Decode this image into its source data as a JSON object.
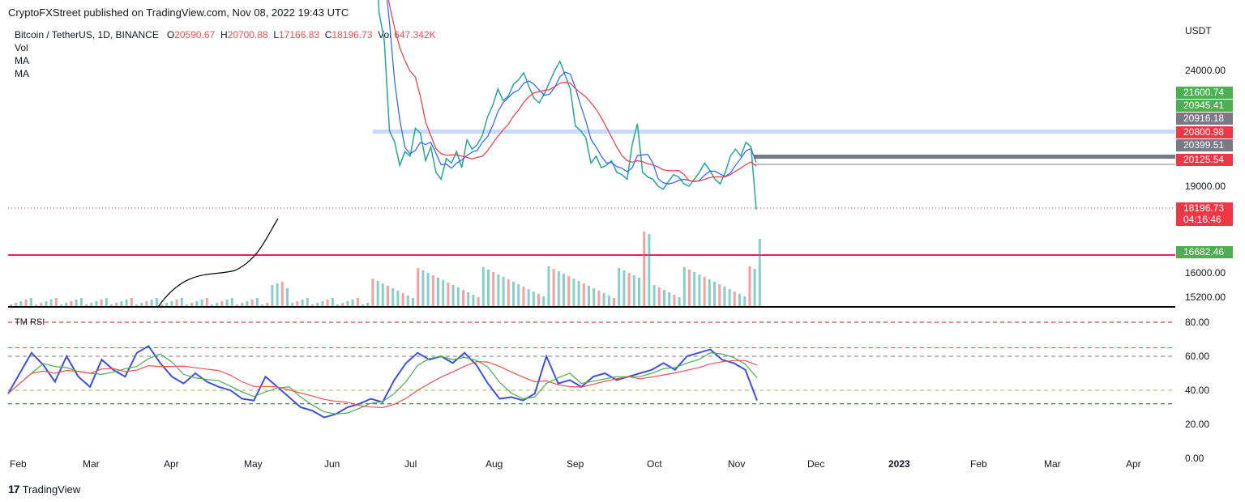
{
  "header": {
    "text": "CryptoFXStreet published on TradingView.com, Nov 08, 2022 19:43 UTC"
  },
  "legend": {
    "symbol": "Bitcoin / TetherUS, 1D, BINANCE",
    "o_label": "O",
    "o_val": "20590.67",
    "h_label": "H",
    "h_val": "20700.88",
    "l_label": "L",
    "l_val": "17166.83",
    "c_label": "C",
    "c_val": "18196.73",
    "vol_label": "Vol",
    "vol_val": "647.342K",
    "rows": [
      "Vol",
      "MA",
      "MA"
    ]
  },
  "rsi_title": "TM RSI",
  "footer": {
    "brand": "TradingView"
  },
  "colors": {
    "up": "#26a69a",
    "down": "#ef5350",
    "ma_fast": "#2962ff",
    "ma_slow": "#f23645",
    "rsi": "#3f51d8",
    "rsi_ma1": "#4caf50",
    "rsi_ma2": "#ef5350"
  },
  "chart_data": {
    "type": "line",
    "price_axis": {
      "unit": "USDT",
      "ticks": [
        "24000.00",
        "19000.00",
        "16000.00",
        "15200.00"
      ],
      "labels": [
        {
          "text": "21600.74",
          "color": "#4caf50"
        },
        {
          "text": "20945.41",
          "color": "#4caf50"
        },
        {
          "text": "20916.18",
          "color": "#787b86"
        },
        {
          "text": "20800.98",
          "color": "#f23645"
        },
        {
          "text": "20399.51",
          "color": "#787b86"
        },
        {
          "text": "20125.54",
          "color": "#f23645"
        },
        {
          "text": "18196.73",
          "color": "#f23645"
        },
        {
          "text": "04:16:46",
          "color": "#f23645"
        },
        {
          "text": "16682.46",
          "color": "#4caf50"
        }
      ]
    },
    "rsi_axis": {
      "ticks": [
        "80.00",
        "60.00",
        "40.00",
        "20.00",
        "0.00"
      ],
      "levels": [
        80,
        65,
        60,
        40,
        32
      ]
    },
    "x_ticks": [
      "Feb",
      "Mar",
      "Apr",
      "May",
      "Jun",
      "Jul",
      "Aug",
      "Sep",
      "Oct",
      "Nov",
      "Dec",
      "2023",
      "Feb",
      "Mar",
      "Apr"
    ],
    "price_close": [
      29800,
      31100,
      26500,
      25300,
      21400,
      20900,
      19900,
      20500,
      20300,
      21500,
      21300,
      20100,
      20700,
      19600,
      19300,
      20200,
      20000,
      20500,
      19800,
      21000,
      20600,
      20800,
      21200,
      22000,
      22500,
      23200,
      22700,
      22900,
      23400,
      23600,
      23900,
      23300,
      22800,
      22600,
      23000,
      23500,
      24000,
      24400,
      23800,
      23200,
      21600,
      21400,
      21100,
      20000,
      20300,
      19800,
      19900,
      20100,
      19600,
      19500,
      19300,
      20800,
      21700,
      19600,
      19400,
      19300,
      19000,
      18900,
      19200,
      19500,
      19400,
      19100,
      19000,
      19300,
      19600,
      20000,
      19700,
      19300,
      19100,
      19600,
      20300,
      20600,
      20300,
      20900,
      20700,
      18196
    ],
    "rsi": [
      38,
      50,
      62,
      55,
      45,
      60,
      48,
      42,
      58,
      52,
      48,
      62,
      66,
      56,
      48,
      44,
      50,
      45,
      42,
      40,
      35,
      34,
      48,
      42,
      36,
      30,
      28,
      24,
      26,
      30,
      32,
      35,
      33,
      46,
      56,
      62,
      58,
      60,
      56,
      62,
      55,
      44,
      35,
      36,
      34,
      38,
      60,
      44,
      46,
      42,
      48,
      50,
      46,
      48,
      50,
      52,
      56,
      52,
      60,
      62,
      64,
      58,
      56,
      52,
      34
    ]
  }
}
